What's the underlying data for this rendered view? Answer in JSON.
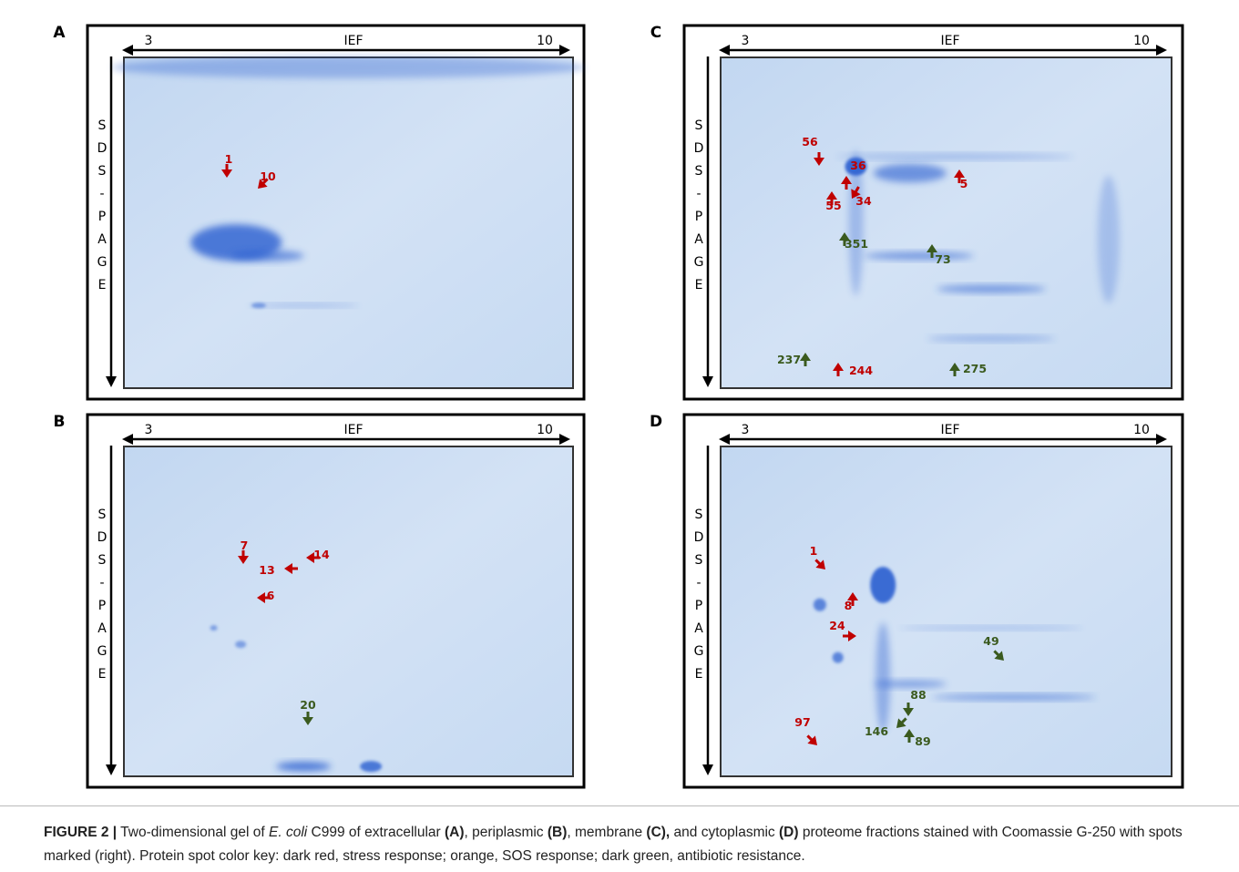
{
  "panels": [
    {
      "letter": "A",
      "ief_left": "3",
      "ief_label": "IEF",
      "ief_right": "10",
      "sds": [
        "S",
        "D",
        "S",
        "-",
        "P",
        "A",
        "G",
        "E"
      ],
      "spots": [
        {
          "label": "1",
          "color": "#c00000"
        },
        {
          "label": "10",
          "color": "#c00000"
        }
      ]
    },
    {
      "letter": "B",
      "ief_left": "3",
      "ief_label": "IEF",
      "ief_right": "10",
      "sds": [
        "S",
        "D",
        "S",
        "-",
        "P",
        "A",
        "G",
        "E"
      ],
      "spots": [
        {
          "label": "7",
          "color": "#c00000"
        },
        {
          "label": "13",
          "color": "#c00000"
        },
        {
          "label": "14",
          "color": "#c00000"
        },
        {
          "label": "6",
          "color": "#c00000"
        },
        {
          "label": "20",
          "color": "#3a5a1e"
        }
      ]
    },
    {
      "letter": "C",
      "ief_left": "3",
      "ief_label": "IEF",
      "ief_right": "10",
      "sds": [
        "S",
        "D",
        "S",
        "-",
        "P",
        "A",
        "G",
        "E"
      ],
      "spots": [
        {
          "label": "56",
          "color": "#c00000"
        },
        {
          "label": "36",
          "color": "#c00000"
        },
        {
          "label": "5",
          "color": "#c00000"
        },
        {
          "label": "55",
          "color": "#c00000"
        },
        {
          "label": "34",
          "color": "#c00000"
        },
        {
          "label": "351",
          "color": "#3a5a1e"
        },
        {
          "label": "73",
          "color": "#3a5a1e"
        },
        {
          "label": "237",
          "color": "#3a5a1e"
        },
        {
          "label": "244",
          "color": "#c00000"
        },
        {
          "label": "275",
          "color": "#3a5a1e"
        }
      ]
    },
    {
      "letter": "D",
      "ief_left": "3",
      "ief_label": "IEF",
      "ief_right": "10",
      "sds": [
        "S",
        "D",
        "S",
        "-",
        "P",
        "A",
        "G",
        "E"
      ],
      "spots": [
        {
          "label": "1",
          "color": "#c00000"
        },
        {
          "label": "8",
          "color": "#c00000"
        },
        {
          "label": "24",
          "color": "#c00000"
        },
        {
          "label": "49",
          "color": "#3a5a1e"
        },
        {
          "label": "88",
          "color": "#3a5a1e"
        },
        {
          "label": "146",
          "color": "#3a5a1e"
        },
        {
          "label": "89",
          "color": "#3a5a1e"
        },
        {
          "label": "97",
          "color": "#c00000"
        }
      ]
    }
  ],
  "caption": [
    "FIGURE 2 |",
    " Two-dimensional gel of ",
    "E. coli",
    " C999 of extracellular ",
    "(A)",
    ", periplasmic ",
    "(B)",
    ", membrane ",
    "(C),",
    " and cytoplasmic ",
    "(D)",
    " proteome fractions stained with Coomassie G-250 with spots marked (right). Protein spot color key: dark red, stress response; orange, SOS response; dark green, antibiotic resistance."
  ]
}
